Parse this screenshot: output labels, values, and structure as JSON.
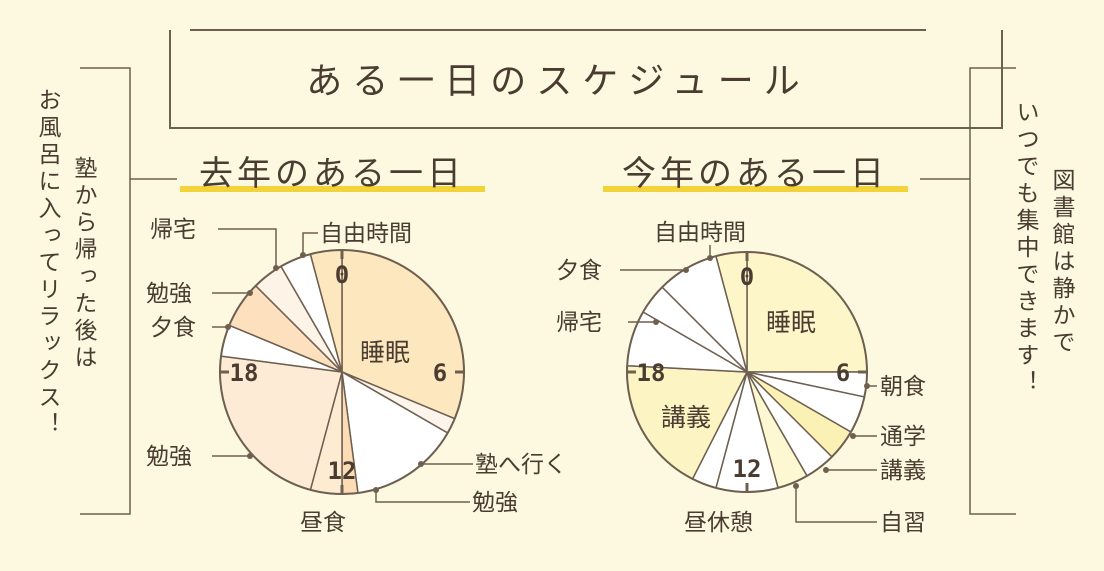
{
  "title": "ある一日のスケジュール",
  "side_notes": {
    "left": [
      "塾から帰った後は",
      "お風呂に入ってリラックス！"
    ],
    "right": [
      "図書館は静かで",
      "いつでも集中できます！"
    ]
  },
  "colors": {
    "background": "#fdf9e1",
    "text": "#4a3c30",
    "line": "#6e5f50",
    "underline": "#f2d43a"
  },
  "chart_data": [
    {
      "type": "pie",
      "title": "去年のある一日",
      "unit": "hour",
      "start_hour": 0,
      "clock_labels": [
        "0",
        "6",
        "12",
        "18"
      ],
      "slices": [
        {
          "label": "睡眠",
          "start": 0,
          "end": 7.5,
          "color": "#fde7be"
        },
        {
          "label": "塾へ行く",
          "start": 7.5,
          "end": 8.0,
          "color": "#fdf5ec"
        },
        {
          "label": "勉強",
          "start": 8.0,
          "end": 11.5,
          "color": "#ffffff"
        },
        {
          "label": "昼食",
          "start": 11.5,
          "end": 12.0,
          "color": "#fbdcb4"
        },
        {
          "label": "12",
          "start": 12.0,
          "end": 13.0,
          "color": "#fdebd2"
        },
        {
          "label": "勉強",
          "start": 13.0,
          "end": 18.5,
          "color": "#fdebd6"
        },
        {
          "label": "夕食",
          "start": 18.5,
          "end": 19.5,
          "color": "#ffffff"
        },
        {
          "label": "勉強",
          "start": 19.5,
          "end": 21.0,
          "color": "#fde1be"
        },
        {
          "label": "帰宅",
          "start": 21.0,
          "end": 22.0,
          "color": "#fdf3e6"
        },
        {
          "label": "自由時間",
          "start": 22.0,
          "end": 23.0,
          "color": "#ffffff"
        },
        {
          "label": "",
          "start": 23.0,
          "end": 24.0,
          "color": "#fde7be"
        }
      ]
    },
    {
      "type": "pie",
      "title": "今年のある一日",
      "unit": "hour",
      "start_hour": 0,
      "clock_labels": [
        "0",
        "6",
        "12",
        "18"
      ],
      "slices": [
        {
          "label": "睡眠",
          "start": 0,
          "end": 6.0,
          "color": "#fdf6c8"
        },
        {
          "label": "朝食",
          "start": 6.0,
          "end": 6.8,
          "color": "#ffffff"
        },
        {
          "label": "通学",
          "start": 6.8,
          "end": 8.0,
          "color": "#ffffff"
        },
        {
          "label": "講義",
          "start": 8.0,
          "end": 9.0,
          "color": "#fbf1b4"
        },
        {
          "label": "自習",
          "start": 9.0,
          "end": 10.0,
          "color": "#ffffff"
        },
        {
          "label": "講義",
          "start": 10.0,
          "end": 11.0,
          "color": "#fdf7d2"
        },
        {
          "label": "12",
          "start": 11.0,
          "end": 13.0,
          "color": "#ffffff"
        },
        {
          "label": "昼休憩",
          "start": 13.0,
          "end": 13.8,
          "color": "#ffffff"
        },
        {
          "label": "講義",
          "start": 13.8,
          "end": 18.2,
          "color": "#fcf4c2"
        },
        {
          "label": "帰宅",
          "start": 18.2,
          "end": 20.0,
          "color": "#ffffff"
        },
        {
          "label": "夕食",
          "start": 20.0,
          "end": 21.0,
          "color": "#ffffff"
        },
        {
          "label": "自由時間",
          "start": 21.0,
          "end": 23.0,
          "color": "#ffffff"
        },
        {
          "label": "",
          "start": 23.0,
          "end": 24.0,
          "color": "#fdf6c8"
        }
      ]
    }
  ],
  "labels": {
    "left": {
      "sleep": "睡眠",
      "juku": "塾へ行く",
      "study1": "勉強",
      "lunch": "昼食",
      "study2": "勉強",
      "dinner": "夕食",
      "study3": "勉強",
      "home": "帰宅",
      "free": "自由時間"
    },
    "right": {
      "sleep": "睡眠",
      "breakfast": "朝食",
      "commute": "通学",
      "lecture1": "講義",
      "self_study": "自習",
      "lunch_break": "昼休憩",
      "lecture_big": "講義",
      "home": "帰宅",
      "dinner": "夕食",
      "free": "自由時間"
    }
  }
}
